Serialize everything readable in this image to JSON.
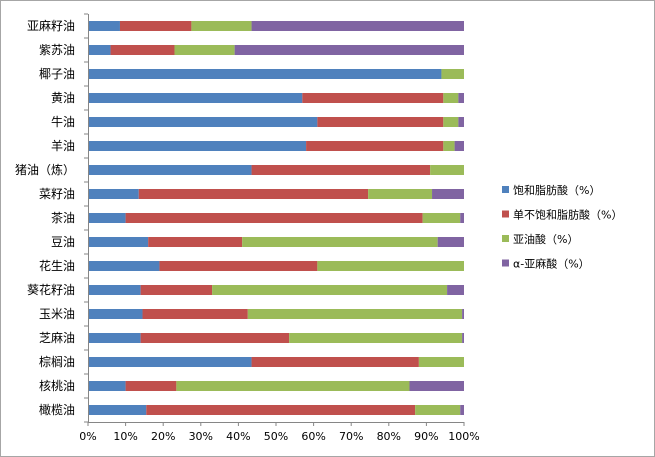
{
  "chart_data": {
    "type": "bar",
    "orientation": "horizontal",
    "stacked": "percent",
    "categories": [
      "亚麻籽油",
      "紫苏油",
      "椰子油",
      "黄油",
      "牛油",
      "羊油",
      "猪油（炼）",
      "菜籽油",
      "茶油",
      "豆油",
      "花生油",
      "葵花籽油",
      "玉米油",
      "芝麻油",
      "棕榈油",
      "核桃油",
      "橄榄油"
    ],
    "series": [
      {
        "name": "饱和脂肪酸（%）",
        "color": "#4f81bd",
        "values": [
          8.5,
          6,
          94,
          57,
          61,
          58,
          43.5,
          13.5,
          10,
          16,
          19,
          14,
          14.5,
          14,
          43.5,
          10,
          15.5
        ]
      },
      {
        "name": "单不饱和脂肪酸（%）",
        "color": "#c0504d",
        "values": [
          19,
          17,
          0,
          37.5,
          33.5,
          36.5,
          47.5,
          61,
          79,
          25,
          42,
          19,
          28,
          39.5,
          44.5,
          13.5,
          71.5
        ]
      },
      {
        "name": "亚油酸（%）",
        "color": "#9bbb59",
        "values": [
          16,
          16,
          6,
          4,
          4,
          3,
          9,
          17,
          10,
          52,
          39,
          62.5,
          57,
          46,
          12,
          62,
          12
        ]
      },
      {
        "name": "α-亚麻酸（%）",
        "color": "#8064a2",
        "values": [
          56.5,
          61,
          0,
          1.5,
          1.5,
          2.5,
          0,
          8.5,
          1,
          7,
          0,
          4.5,
          0.5,
          0.5,
          0,
          14.5,
          1
        ]
      }
    ],
    "x_ticks": [
      "0%",
      "10%",
      "20%",
      "30%",
      "40%",
      "50%",
      "60%",
      "70%",
      "80%",
      "90%",
      "100%"
    ],
    "xlim": [
      0,
      100
    ],
    "grid": false,
    "legend_position": "right"
  }
}
